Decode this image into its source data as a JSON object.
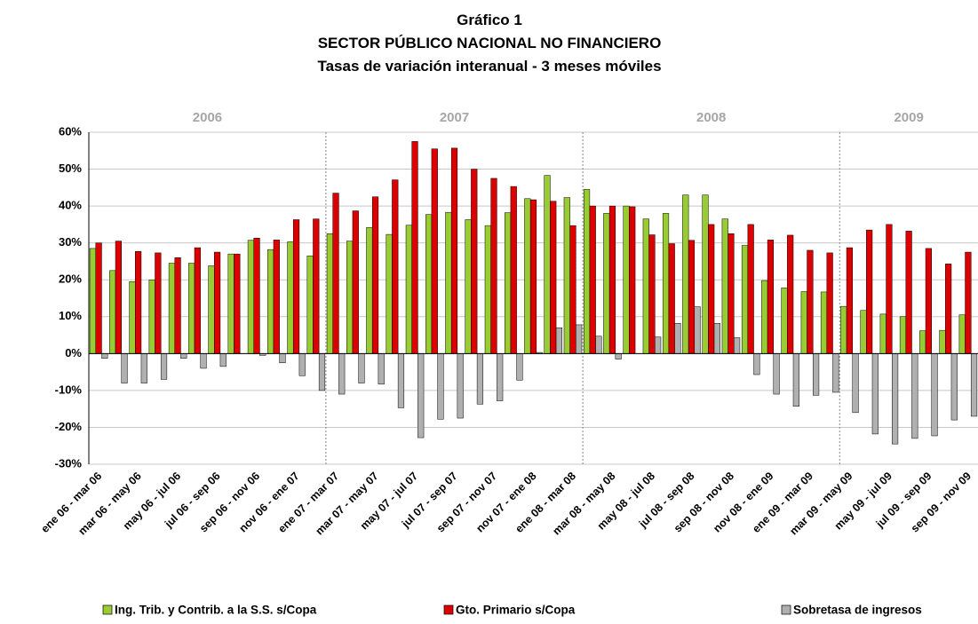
{
  "chart_data": {
    "type": "bar",
    "title": "Gráfico 1",
    "subtitle": [
      "SECTOR PÚBLICO NACIONAL NO FINANCIERO",
      "Tasas de variación interanual - 3 meses móviles"
    ],
    "year_labels": [
      "2006",
      "2007",
      "2008",
      "2009"
    ],
    "categories": [
      "ene 06 - mar 06",
      null,
      "mar 06 - may 06",
      null,
      "may 06 - jul 06",
      null,
      "jul 06 - sep 06",
      null,
      "sep 06 - nov 06",
      null,
      "nov 06 - ene 07",
      null,
      "ene 07 - mar 07",
      null,
      "mar 07 - may 07",
      null,
      "may 07 - jul 07",
      null,
      "jul 07 - sep 07",
      null,
      "sep 07 - nov 07",
      null,
      "nov 07 - ene 08",
      null,
      "ene 08 - mar 08",
      null,
      "mar 08 - may 08",
      null,
      "may 08 - jul 08",
      null,
      "jul 08 - sep 08",
      null,
      "sep 08 - nov 08",
      null,
      "nov 08 - ene 09",
      null,
      "ene 09 - mar 09",
      null,
      "mar 09 - may 09",
      null,
      "may 09 - jul 09",
      null,
      "jul 09 - sep 09",
      null,
      "sep 09 - nov 09"
    ],
    "series": [
      {
        "name": "Ing. Trib. y Contrib. a la S.S. s/Copa",
        "color": "#99cc33",
        "values": [
          28.5,
          22.5,
          19.5,
          20,
          24.5,
          24.5,
          23.8,
          27,
          30.7,
          28.2,
          30.3,
          26.5,
          32.5,
          30.5,
          34.2,
          32.3,
          34.8,
          37.7,
          38.3,
          36.3,
          34.7,
          38.2,
          42,
          48.3,
          42.3,
          44.5,
          38,
          40,
          36.5,
          38,
          43,
          43,
          36.5,
          29.3,
          19.8,
          17.8,
          16.8,
          16.7,
          12.8,
          11.7,
          10.7,
          10,
          6.2,
          6.3,
          10.5
        ]
      },
      {
        "name": "Gto. Primario s/Copa",
        "color": "#dd0000",
        "values": [
          30,
          30.5,
          27.7,
          27.3,
          26,
          28.7,
          27.5,
          27,
          31.3,
          30.8,
          36.3,
          36.5,
          43.5,
          38.7,
          42.5,
          47.1,
          57.5,
          55.5,
          55.7,
          50,
          47.5,
          45.3,
          41.7,
          41.3,
          34.7,
          40,
          40,
          39.8,
          32.2,
          29.8,
          30.7,
          35,
          32.5,
          35,
          30.8,
          32.1,
          28,
          27.3,
          28.7,
          33.5,
          35,
          33.2,
          28.5,
          24.3,
          27.5
        ]
      },
      {
        "name": "Sobretasa de ingresos",
        "color": "#b0b0b0",
        "values": [
          -1.3,
          -8,
          -8,
          -7,
          -1.3,
          -4,
          -3.5,
          0,
          -0.5,
          -2.5,
          -6,
          -10,
          -11,
          -8,
          -8.3,
          -14.7,
          -22.8,
          -17.8,
          -17.5,
          -13.7,
          -12.8,
          -7.2,
          0.3,
          7,
          7.8,
          4.7,
          -1.5,
          0,
          4.5,
          8.2,
          12.7,
          8.2,
          4.3,
          -5.7,
          -11,
          -14.3,
          -11.3,
          -10.5,
          -16,
          -21.8,
          -24.5,
          -23,
          -22.3,
          -18,
          -17
        ]
      }
    ],
    "ylim": [
      -30,
      60
    ],
    "yticks": [
      {
        "value": -30,
        "label": "-30%"
      },
      {
        "value": -20,
        "label": "-20%"
      },
      {
        "value": -10,
        "label": "-10%"
      },
      {
        "value": 0,
        "label": "0%"
      },
      {
        "value": 10,
        "label": "10%"
      },
      {
        "value": 20,
        "label": "20%"
      },
      {
        "value": 30,
        "label": "30%"
      },
      {
        "value": 40,
        "label": "40%"
      },
      {
        "value": 50,
        "label": "50%"
      },
      {
        "value": 60,
        "label": "60%"
      }
    ],
    "grid": true
  }
}
